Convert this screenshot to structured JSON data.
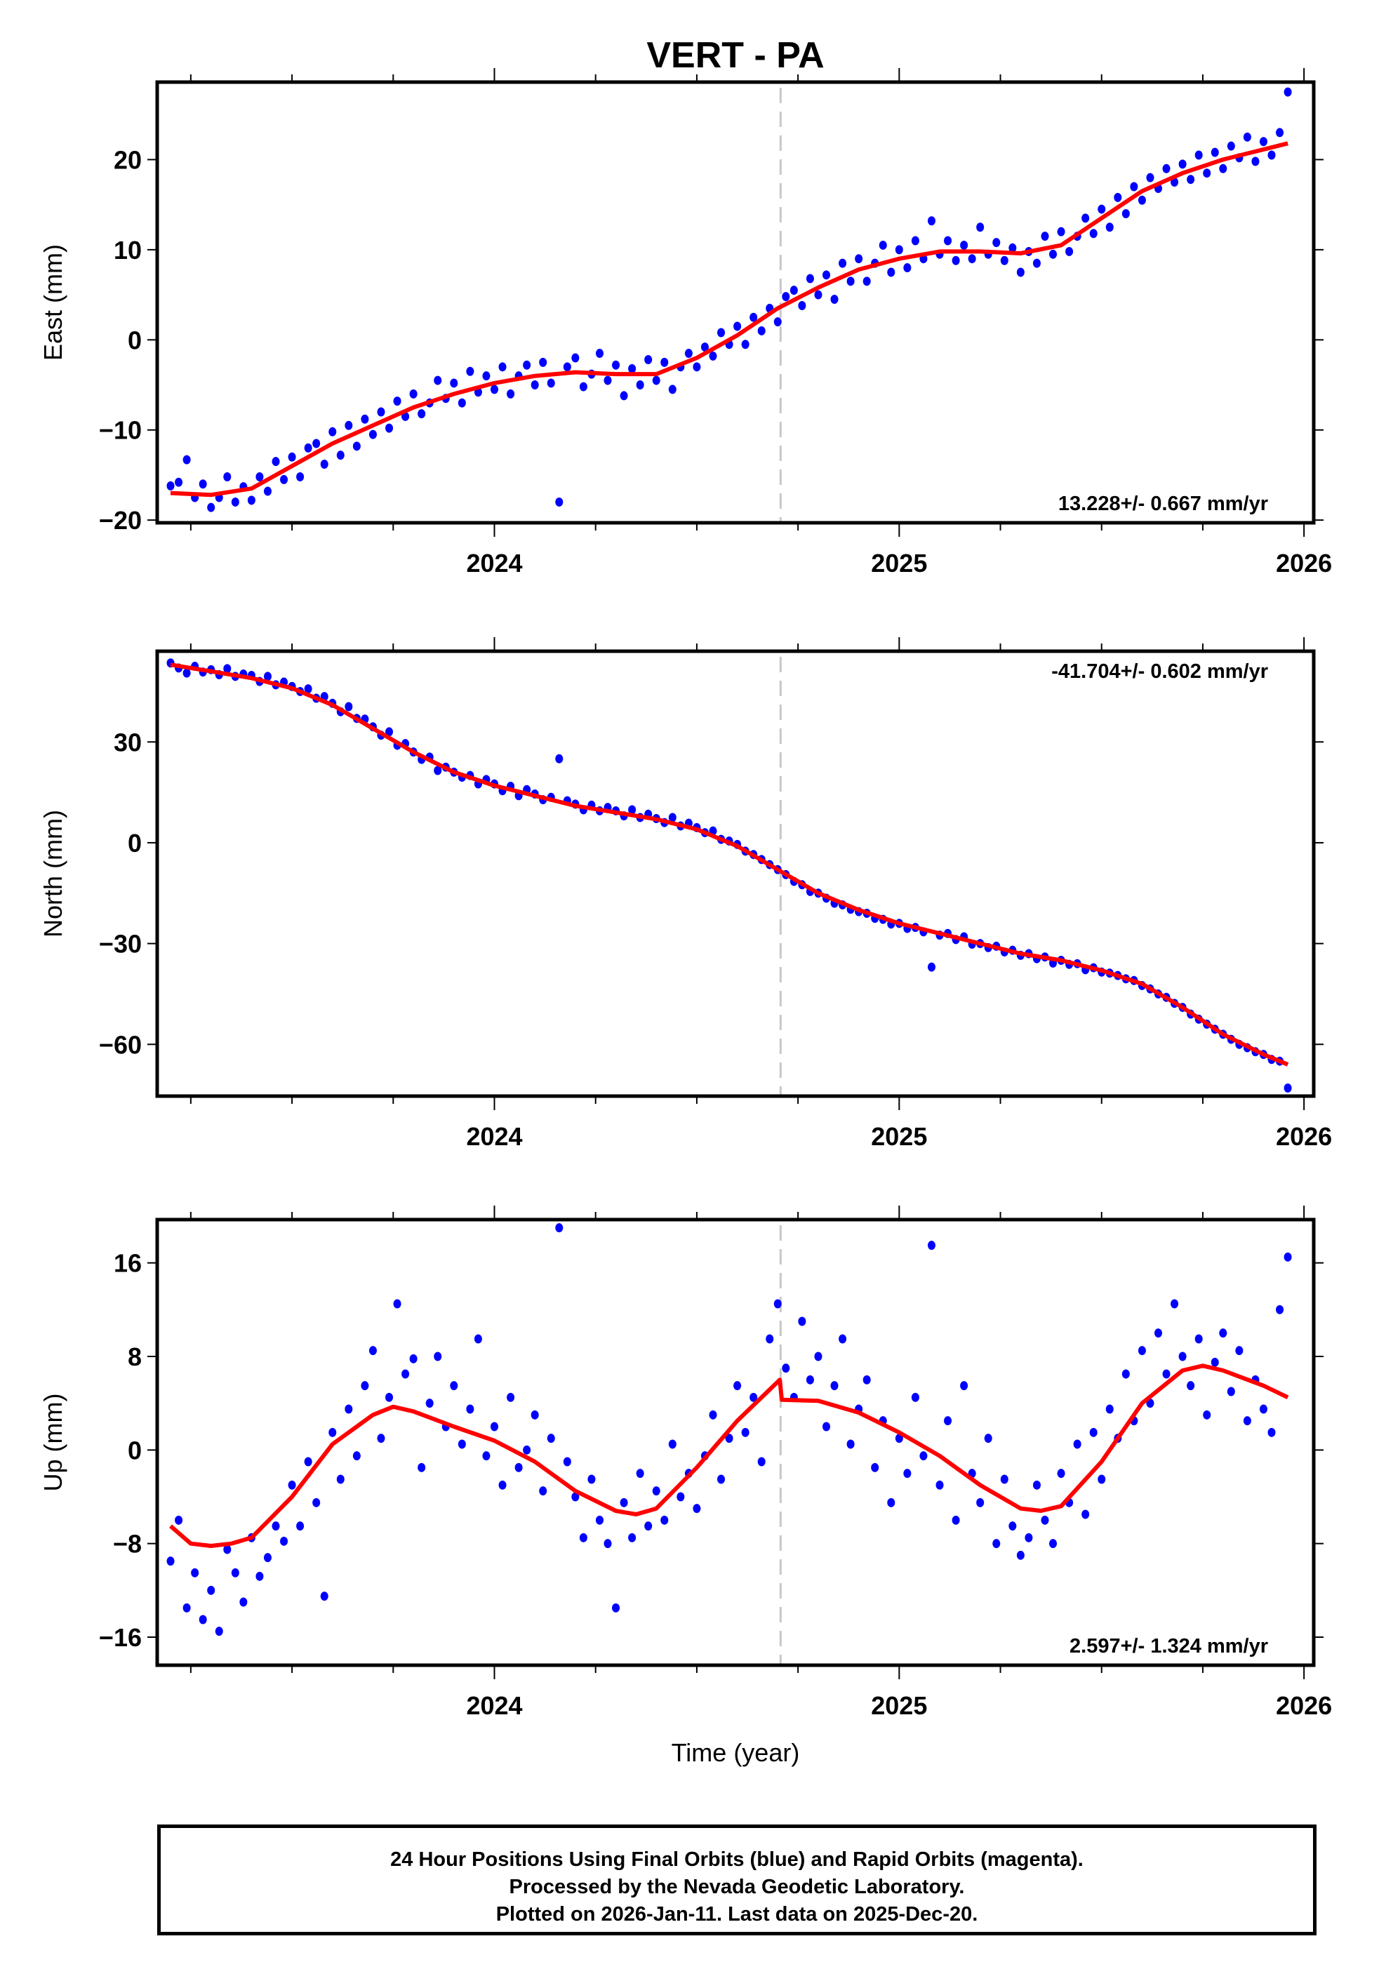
{
  "title": "VERT - PA",
  "footer": {
    "line1": "24 Hour Positions Using Final Orbits (blue) and Rapid Orbits (magenta).",
    "line2": "Processed by the Nevada Geodetic Laboratory.",
    "line3": "Plotted on 2026-Jan-11. Last data on 2025-Dec-20."
  },
  "colors": {
    "final_orbits": "#0000ff",
    "fit": "#ff0000",
    "marker_line": "#c8c8c8",
    "axis": "#000000"
  },
  "chart_data": [
    {
      "type": "scatter",
      "name": "east",
      "ylabel": "East (mm)",
      "xlabel": "",
      "xlim": [
        2023.167,
        2026.024
      ],
      "ylim": [
        -20.3,
        28.6
      ],
      "xticks": [
        2024,
        2025,
        2026
      ],
      "xtick_labels": [
        "2024",
        "2025",
        "2026"
      ],
      "yticks": [
        -20,
        -10,
        0,
        10,
        20
      ],
      "ytick_labels": [
        "−20",
        "−10",
        "0",
        "10",
        "20"
      ],
      "rate": "13.228+/- 0.667 mm/yr",
      "rate_position": "bottom-right",
      "equipment_change_year": 2024.707,
      "obs_x_start": 2023.2,
      "obs_x_step": 0.02,
      "obs": [
        -16.2,
        -15.8,
        -13.3,
        -17.5,
        -16,
        -18.6,
        -17.5,
        -15.2,
        -18,
        -16.3,
        -17.8,
        -15.2,
        -16.8,
        -13.5,
        -15.5,
        -13,
        -15.2,
        -12,
        -11.5,
        -13.8,
        -10.2,
        -12.8,
        -9.5,
        -11.8,
        -8.8,
        -10.5,
        -8,
        -9.8,
        -6.8,
        -8.5,
        -6,
        -8.2,
        -7,
        -4.5,
        -6.5,
        -4.8,
        -7,
        -3.5,
        -5.8,
        -4,
        -5.5,
        -3,
        -6,
        -4,
        -2.8,
        -5,
        -2.5,
        -4.8,
        -18,
        -3,
        -2,
        -5.2,
        -3.8,
        -1.5,
        -4.5,
        -2.8,
        -6.2,
        -3.2,
        -5,
        -2.2,
        -4.5,
        -2.5,
        -5.5,
        -3,
        -1.5,
        -3,
        -0.8,
        -1.8,
        0.8,
        -0.5,
        1.5,
        -0.5,
        2.5,
        1,
        3.5,
        2,
        4.8,
        5.5,
        3.8,
        6.8,
        5,
        7.2,
        4.5,
        8.5,
        6.5,
        9,
        6.5,
        8.5,
        10.5,
        7.5,
        10,
        8,
        11,
        9,
        13.2,
        9.5,
        11,
        8.8,
        10.5,
        9,
        12.5,
        9.5,
        10.8,
        8.8,
        10.2,
        7.5,
        9.8,
        8.5,
        11.5,
        9.5,
        12,
        9.8,
        11.5,
        13.5,
        11.8,
        14.5,
        12.5,
        15.8,
        14,
        17,
        15.5,
        18,
        16.8,
        19,
        17.5,
        19.5,
        17.8,
        20.5,
        18.5,
        20.8,
        19,
        21.5,
        20.2,
        22.5,
        19.8,
        22,
        20.5,
        23,
        27.5
      ],
      "fit": [
        [
          2023.2,
          -17
        ],
        [
          2023.3,
          -17.2
        ],
        [
          2023.4,
          -16.5
        ],
        [
          2023.5,
          -14
        ],
        [
          2023.6,
          -11.5
        ],
        [
          2023.7,
          -9.5
        ],
        [
          2023.8,
          -7.5
        ],
        [
          2023.9,
          -6
        ],
        [
          2024.0,
          -4.8
        ],
        [
          2024.1,
          -4
        ],
        [
          2024.2,
          -3.6
        ],
        [
          2024.3,
          -3.8
        ],
        [
          2024.4,
          -3.8
        ],
        [
          2024.5,
          -2
        ],
        [
          2024.6,
          0.5
        ],
        [
          2024.7,
          3.5
        ],
        [
          2024.8,
          5.8
        ],
        [
          2024.9,
          7.8
        ],
        [
          2025.0,
          9
        ],
        [
          2025.1,
          9.8
        ],
        [
          2025.2,
          9.8
        ],
        [
          2025.3,
          9.6
        ],
        [
          2025.4,
          10.5
        ],
        [
          2025.5,
          13.5
        ],
        [
          2025.6,
          16.5
        ],
        [
          2025.7,
          18.5
        ],
        [
          2025.8,
          20
        ],
        [
          2025.96,
          21.8
        ]
      ]
    },
    {
      "type": "scatter",
      "name": "north",
      "ylabel": "North (mm)",
      "xlabel": "",
      "xlim": [
        2023.167,
        2026.024
      ],
      "ylim": [
        -75.4,
        57
      ],
      "xticks": [
        2024,
        2025,
        2026
      ],
      "xtick_labels": [
        "2024",
        "2025",
        "2026"
      ],
      "yticks": [
        -60,
        -30,
        0,
        30
      ],
      "ytick_labels": [
        "−60",
        "−30",
        "0",
        "30"
      ],
      "rate": "-41.704+/- 0.602 mm/yr",
      "rate_position": "top-right",
      "equipment_change_year": 2024.707,
      "obs_x_start": 2023.2,
      "obs_x_step": 0.02,
      "obs": [
        53.5,
        52,
        50.5,
        52.5,
        50.8,
        51.5,
        50,
        51.8,
        49.5,
        50.2,
        49.8,
        48,
        49.5,
        47,
        47.8,
        46.5,
        45,
        45.8,
        43,
        43.5,
        41.5,
        39,
        40.5,
        37,
        36.8,
        34.5,
        32,
        33,
        29,
        29.5,
        27,
        24.8,
        25.5,
        21.5,
        22.5,
        21,
        19.5,
        20,
        17.5,
        18.8,
        17.5,
        15.5,
        16.8,
        14,
        15.8,
        14.5,
        12.8,
        13.5,
        25,
        12.5,
        11.5,
        9.8,
        11.2,
        9.5,
        10.5,
        9.5,
        8,
        9.8,
        7.5,
        8.5,
        7.2,
        6,
        7.5,
        5,
        5.8,
        4.5,
        3,
        3.5,
        1,
        0.5,
        -0.5,
        -2.5,
        -3.5,
        -5,
        -6.5,
        -8,
        -9.5,
        -11.5,
        -12.5,
        -14.5,
        -15,
        -16.5,
        -18,
        -18.5,
        -19.8,
        -20.5,
        -21,
        -22.5,
        -22.8,
        -24.2,
        -24,
        -25.5,
        -25.2,
        -26.5,
        -37,
        -27.5,
        -27,
        -28.8,
        -28,
        -30.2,
        -30,
        -31.2,
        -30.8,
        -32.5,
        -32,
        -33.5,
        -33,
        -34.5,
        -34,
        -35.8,
        -35,
        -36.2,
        -36,
        -37.8,
        -37.2,
        -38.5,
        -38.8,
        -39.5,
        -40.5,
        -41,
        -42.5,
        -43.5,
        -45,
        -46,
        -47.8,
        -49,
        -51,
        -52.5,
        -54,
        -55.5,
        -57,
        -58.5,
        -60,
        -61,
        -62.2,
        -63,
        -64.5,
        -65,
        -73
      ],
      "fit": [
        [
          2023.2,
          53
        ],
        [
          2023.3,
          51
        ],
        [
          2023.4,
          49
        ],
        [
          2023.5,
          46
        ],
        [
          2023.6,
          41
        ],
        [
          2023.7,
          34
        ],
        [
          2023.8,
          27
        ],
        [
          2023.9,
          21
        ],
        [
          2024.0,
          17
        ],
        [
          2024.1,
          14
        ],
        [
          2024.2,
          11
        ],
        [
          2024.3,
          9
        ],
        [
          2024.4,
          7
        ],
        [
          2024.5,
          4
        ],
        [
          2024.6,
          -1
        ],
        [
          2024.7,
          -8
        ],
        [
          2024.8,
          -15
        ],
        [
          2024.9,
          -20
        ],
        [
          2025.0,
          -24
        ],
        [
          2025.1,
          -27
        ],
        [
          2025.2,
          -30
        ],
        [
          2025.3,
          -33
        ],
        [
          2025.4,
          -35
        ],
        [
          2025.5,
          -38
        ],
        [
          2025.6,
          -42
        ],
        [
          2025.7,
          -49
        ],
        [
          2025.8,
          -57
        ],
        [
          2025.9,
          -63
        ],
        [
          2025.96,
          -66
        ]
      ]
    },
    {
      "type": "scatter",
      "name": "up",
      "ylabel": "Up (mm)",
      "xlabel": "Time (year)",
      "xlim": [
        2023.167,
        2026.024
      ],
      "ylim": [
        -18.4,
        19.7
      ],
      "xticks": [
        2024,
        2025,
        2026
      ],
      "xtick_labels": [
        "2024",
        "2025",
        "2026"
      ],
      "yticks": [
        -16,
        -8,
        0,
        8,
        16
      ],
      "ytick_labels": [
        "−16",
        "−8",
        "0",
        "8",
        "16"
      ],
      "rate": "2.597+/- 1.324 mm/yr",
      "rate_position": "bottom-right",
      "equipment_change_year": 2024.707,
      "obs_x_start": 2023.2,
      "obs_x_step": 0.02,
      "obs": [
        -9.5,
        -6,
        -13.5,
        -10.5,
        -14.5,
        -12,
        -15.5,
        -8.5,
        -10.5,
        -13,
        -7.5,
        -10.8,
        -9.2,
        -6.5,
        -7.8,
        -3,
        -6.5,
        -1,
        -4.5,
        -12.5,
        1.5,
        -2.5,
        3.5,
        -0.5,
        5.5,
        8.5,
        1,
        4.5,
        12.5,
        6.5,
        7.8,
        -1.5,
        4,
        8,
        2,
        5.5,
        0.5,
        3.5,
        9.5,
        -0.5,
        2,
        -3,
        4.5,
        -1.5,
        0,
        3,
        -3.5,
        1,
        19,
        -1,
        -4,
        -7.5,
        -2.5,
        -6,
        -8,
        -13.5,
        -4.5,
        -7.5,
        -2,
        -6.5,
        -3.5,
        -6,
        0.5,
        -4,
        -2,
        -5,
        -0.5,
        3,
        -2.5,
        1,
        5.5,
        1.5,
        4.5,
        -1,
        9.5,
        12.5,
        7,
        4.5,
        11,
        6,
        8,
        2,
        5.5,
        9.5,
        0.5,
        3.5,
        6,
        -1.5,
        2.5,
        -4.5,
        1,
        -2,
        4.5,
        -0.5,
        17.5,
        -3,
        2.5,
        -6,
        5.5,
        -2,
        -4.5,
        1,
        -8,
        -2.5,
        -6.5,
        -9,
        -7.5,
        -3,
        -6,
        -8,
        -2,
        -4.5,
        0.5,
        -5.5,
        1.5,
        -2.5,
        3.5,
        1,
        6.5,
        2.5,
        8.5,
        4,
        10,
        6.5,
        12.5,
        8,
        5.5,
        9.5,
        3,
        7.5,
        10,
        5,
        8.5,
        2.5,
        6,
        3.5,
        1.5,
        12,
        16.5
      ],
      "fit": [
        [
          2023.2,
          -6.5
        ],
        [
          2023.25,
          -8
        ],
        [
          2023.3,
          -8.2
        ],
        [
          2023.35,
          -8
        ],
        [
          2023.4,
          -7.5
        ],
        [
          2023.5,
          -4
        ],
        [
          2023.6,
          0.5
        ],
        [
          2023.7,
          3
        ],
        [
          2023.75,
          3.7
        ],
        [
          2023.8,
          3.3
        ],
        [
          2023.9,
          2
        ],
        [
          2024.0,
          0.8
        ],
        [
          2024.1,
          -1
        ],
        [
          2024.2,
          -3.5
        ],
        [
          2024.3,
          -5.2
        ],
        [
          2024.35,
          -5.5
        ],
        [
          2024.4,
          -5
        ],
        [
          2024.5,
          -1.5
        ],
        [
          2024.6,
          2.5
        ],
        [
          2024.705,
          6
        ],
        [
          2024.71,
          4.3
        ],
        [
          2024.8,
          4.2
        ],
        [
          2024.9,
          3.2
        ],
        [
          2025.0,
          1.5
        ],
        [
          2025.1,
          -0.5
        ],
        [
          2025.2,
          -3
        ],
        [
          2025.3,
          -5
        ],
        [
          2025.35,
          -5.2
        ],
        [
          2025.4,
          -4.8
        ],
        [
          2025.5,
          -1
        ],
        [
          2025.6,
          4
        ],
        [
          2025.7,
          6.8
        ],
        [
          2025.75,
          7.2
        ],
        [
          2025.8,
          6.8
        ],
        [
          2025.9,
          5.5
        ],
        [
          2025.96,
          4.5
        ]
      ]
    }
  ]
}
